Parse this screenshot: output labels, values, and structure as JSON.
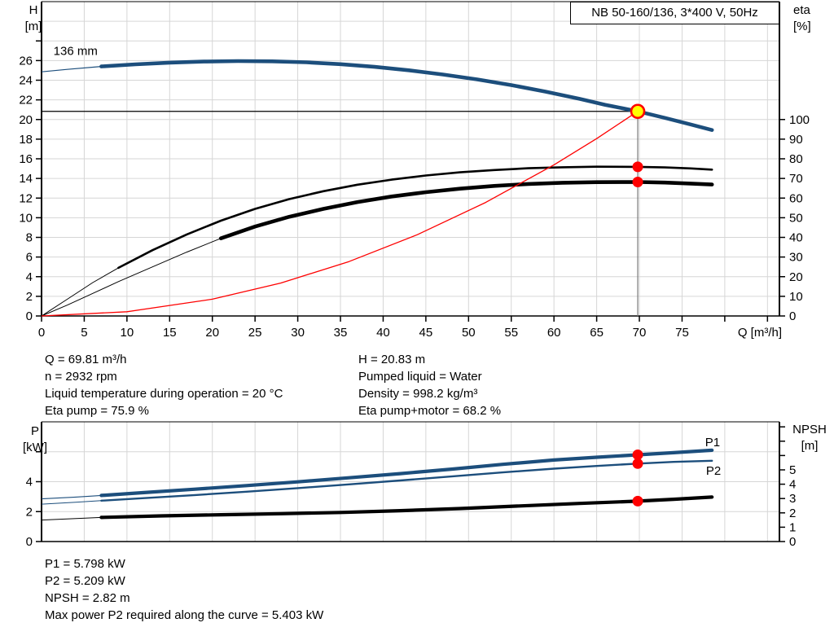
{
  "colors": {
    "blue": "#1c4e7c",
    "black": "#000000",
    "red": "#fe0000",
    "gray": "#7a7a7a",
    "grid": "#d6d6d6",
    "duty_fill": "#ffff00"
  },
  "chart_data": [
    {
      "id": "head-efficiency-chart",
      "type": "line",
      "title": "NB 50-160/136, 3*400 V, 50Hz",
      "x_axis": {
        "label": "Q [m³/h]",
        "range": [
          0,
          86.4
        ],
        "grid": [
          5,
          10,
          15,
          20,
          25,
          30,
          35,
          40,
          45,
          50,
          55,
          60,
          65,
          70,
          75,
          80,
          85
        ],
        "ticks": [
          {
            "v": 0,
            "label": "0"
          },
          {
            "v": 5,
            "label": "5"
          },
          {
            "v": 10,
            "label": "10"
          },
          {
            "v": 15,
            "label": "15"
          },
          {
            "v": 20,
            "label": "20"
          },
          {
            "v": 25,
            "label": "25"
          },
          {
            "v": 30,
            "label": "30"
          },
          {
            "v": 35,
            "label": "35"
          },
          {
            "v": 40,
            "label": "40"
          },
          {
            "v": 45,
            "label": "45"
          },
          {
            "v": 50,
            "label": "50"
          },
          {
            "v": 55,
            "label": "55"
          },
          {
            "v": 60,
            "label": "60"
          },
          {
            "v": 65,
            "label": "65"
          },
          {
            "v": 70,
            "label": "70"
          },
          {
            "v": 75,
            "label": "75"
          },
          {
            "v": 80
          },
          {
            "v": 85
          }
        ]
      },
      "left_axis": {
        "name": [
          "H",
          "[m]"
        ],
        "range": [
          0,
          32
        ],
        "grid": [
          2,
          4,
          6,
          8,
          10,
          12,
          14,
          16,
          18,
          20,
          22,
          24,
          26,
          28,
          30
        ],
        "ticks": [
          {
            "v": 0,
            "label": "0"
          },
          {
            "v": 2,
            "label": "2"
          },
          {
            "v": 4,
            "label": "4"
          },
          {
            "v": 6,
            "label": "6"
          },
          {
            "v": 8,
            "label": "8"
          },
          {
            "v": 10,
            "label": "10"
          },
          {
            "v": 12,
            "label": "12"
          },
          {
            "v": 14,
            "label": "14"
          },
          {
            "v": 16,
            "label": "16"
          },
          {
            "v": 18,
            "label": "18"
          },
          {
            "v": 20,
            "label": "20"
          },
          {
            "v": 22,
            "label": "22"
          },
          {
            "v": 24,
            "label": "24"
          },
          {
            "v": 26,
            "label": "26"
          },
          {
            "v": 28
          }
        ]
      },
      "right_axis": {
        "name": [
          "eta",
          "[%]"
        ],
        "range": [
          0,
          160
        ],
        "ticks": [
          {
            "v": 0,
            "label": "0"
          },
          {
            "v": 10,
            "label": "10"
          },
          {
            "v": 20,
            "label": "20"
          },
          {
            "v": 30,
            "label": "30"
          },
          {
            "v": 40,
            "label": "40"
          },
          {
            "v": 50,
            "label": "50"
          },
          {
            "v": 60,
            "label": "60"
          },
          {
            "v": 70,
            "label": "70"
          },
          {
            "v": 80,
            "label": "80"
          },
          {
            "v": 90,
            "label": "90"
          },
          {
            "v": 100,
            "label": "100"
          }
        ]
      },
      "ref_lines": [
        {
          "dir": "h",
          "y": 20.83,
          "x1": 0,
          "x2": 69.81,
          "color": "black",
          "w": 1.3
        },
        {
          "dir": "v",
          "x": 69.81,
          "y1": 0,
          "y2": 20.83,
          "color": "gray",
          "w": 1.2
        }
      ],
      "series": [
        {
          "name": "eta-pump-curve",
          "axis": "right",
          "color": "black",
          "width": 2.6,
          "thin_width": 1,
          "thick_from": 7,
          "points": [
            [
              0,
              0
            ],
            [
              3,
              8.5
            ],
            [
              6,
              17
            ],
            [
              9,
              24.5
            ],
            [
              13,
              33.5
            ],
            [
              17,
              41.5
            ],
            [
              21,
              48.5
            ],
            [
              25,
              54.5
            ],
            [
              29,
              59.5
            ],
            [
              33,
              63.5
            ],
            [
              37,
              66.8
            ],
            [
              41,
              69.4
            ],
            [
              45,
              71.5
            ],
            [
              49,
              73.1
            ],
            [
              53,
              74.3
            ],
            [
              57,
              75.2
            ],
            [
              61,
              75.7
            ],
            [
              65,
              76.0
            ],
            [
              69.81,
              75.9
            ],
            [
              73,
              75.6
            ],
            [
              76,
              75.1
            ],
            [
              78.5,
              74.5
            ]
          ]
        },
        {
          "name": "eta-pump-motor-curve",
          "axis": "right",
          "color": "black",
          "width": 4.6,
          "thin_width": 1,
          "thick_from": 20,
          "points": [
            [
              0,
              0
            ],
            [
              3,
              5.5
            ],
            [
              6,
              11.5
            ],
            [
              9,
              17.5
            ],
            [
              13,
              25
            ],
            [
              17,
              32.5
            ],
            [
              21,
              39.5
            ],
            [
              25,
              45.5
            ],
            [
              29,
              50.5
            ],
            [
              33,
              54.5
            ],
            [
              37,
              58
            ],
            [
              41,
              60.8
            ],
            [
              45,
              63
            ],
            [
              49,
              64.8
            ],
            [
              53,
              66.2
            ],
            [
              57,
              67.2
            ],
            [
              61,
              67.8
            ],
            [
              65,
              68.1
            ],
            [
              69.81,
              68.2
            ],
            [
              73,
              67.9
            ],
            [
              76,
              67.4
            ],
            [
              78.5,
              66.9
            ]
          ]
        },
        {
          "name": "system-curve",
          "axis": "left",
          "color": "red",
          "width": 1.3,
          "points": [
            [
              0,
              0
            ],
            [
              10,
              0.43
            ],
            [
              20,
              1.71
            ],
            [
              28,
              3.35
            ],
            [
              36,
              5.54
            ],
            [
              44,
              8.27
            ],
            [
              52,
              11.56
            ],
            [
              60,
              15.39
            ],
            [
              65,
              18.06
            ],
            [
              69.81,
              20.83
            ]
          ]
        },
        {
          "name": "pump-curve-136mm",
          "axis": "left",
          "color": "blue",
          "width": 4.6,
          "thin_width": 1.2,
          "thick_from": 7,
          "points": [
            [
              0,
              24.85
            ],
            [
              3,
              25.1
            ],
            [
              7,
              25.4
            ],
            [
              11,
              25.62
            ],
            [
              15,
              25.79
            ],
            [
              19,
              25.9
            ],
            [
              23,
              25.95
            ],
            [
              27,
              25.92
            ],
            [
              31,
              25.82
            ],
            [
              35,
              25.63
            ],
            [
              39,
              25.36
            ],
            [
              43,
              25.01
            ],
            [
              47,
              24.58
            ],
            [
              51,
              24.08
            ],
            [
              55,
              23.5
            ],
            [
              59,
              22.84
            ],
            [
              63,
              22.1
            ],
            [
              66,
              21.5
            ],
            [
              69.81,
              20.83
            ],
            [
              73,
              20.16
            ],
            [
              76,
              19.5
            ],
            [
              78.5,
              18.93
            ]
          ]
        }
      ],
      "markers": [
        {
          "name": "duty-point-marker",
          "kind": "duty",
          "axis": "left",
          "x": 69.81,
          "y": 20.83
        },
        {
          "name": "eta-pump-duty-dot",
          "kind": "dot",
          "axis": "right",
          "x": 69.81,
          "y": 75.9
        },
        {
          "name": "eta-pump-motor-duty-dot",
          "kind": "dot",
          "axis": "right",
          "x": 69.81,
          "y": 68.2
        }
      ],
      "annotations": [
        {
          "name": "impeller-size-label",
          "text": "136 mm",
          "axis": "left",
          "x": 1.4,
          "y": 26.55,
          "color": "black",
          "anchor": "start"
        }
      ]
    },
    {
      "id": "power-npsh-chart",
      "type": "line",
      "x_axis": {
        "range": [
          0,
          86.4
        ],
        "grid": [
          5,
          10,
          15,
          20,
          25,
          30,
          35,
          40,
          45,
          50,
          55,
          60,
          65,
          70,
          75,
          80,
          85
        ],
        "ticks": []
      },
      "left_axis": {
        "name": [
          "P",
          "[kW]"
        ],
        "range": [
          0,
          8
        ],
        "grid": [
          2,
          4,
          6
        ],
        "ticks": [
          {
            "v": 0,
            "label": "0"
          },
          {
            "v": 2,
            "label": "2"
          },
          {
            "v": 4,
            "label": "4"
          },
          {
            "v": 6
          }
        ]
      },
      "right_axis": {
        "name": [
          "NPSH",
          "[m]"
        ],
        "range": [
          0,
          8.35
        ],
        "ticks": [
          {
            "v": 0,
            "label": "0"
          },
          {
            "v": 1,
            "label": "1"
          },
          {
            "v": 2,
            "label": "2"
          },
          {
            "v": 3,
            "label": "3"
          },
          {
            "v": 4,
            "label": "4"
          },
          {
            "v": 5,
            "label": "5"
          },
          {
            "v": 6
          },
          {
            "v": 7
          },
          {
            "v": 8
          }
        ]
      },
      "series": [
        {
          "name": "p1-curve",
          "axis": "left",
          "color": "blue",
          "width": 4.2,
          "thin_width": 1.1,
          "thick_from": 7,
          "points": [
            [
              0,
              2.85
            ],
            [
              4,
              2.97
            ],
            [
              7,
              3.08
            ],
            [
              12,
              3.27
            ],
            [
              18,
              3.5
            ],
            [
              24,
              3.74
            ],
            [
              30,
              3.99
            ],
            [
              36,
              4.26
            ],
            [
              42,
              4.54
            ],
            [
              48,
              4.84
            ],
            [
              54,
              5.16
            ],
            [
              60,
              5.45
            ],
            [
              65,
              5.63
            ],
            [
              69.81,
              5.798
            ],
            [
              74,
              5.94
            ],
            [
              78.5,
              6.1
            ]
          ]
        },
        {
          "name": "p2-curve",
          "axis": "left",
          "color": "blue",
          "width": 2.4,
          "thin_width": 1,
          "thick_from": 7,
          "points": [
            [
              0,
              2.5
            ],
            [
              4,
              2.63
            ],
            [
              7,
              2.73
            ],
            [
              12,
              2.9
            ],
            [
              18,
              3.11
            ],
            [
              24,
              3.33
            ],
            [
              30,
              3.57
            ],
            [
              36,
              3.82
            ],
            [
              42,
              4.08
            ],
            [
              48,
              4.35
            ],
            [
              54,
              4.62
            ],
            [
              60,
              4.87
            ],
            [
              65,
              5.05
            ],
            [
              69.81,
              5.209
            ],
            [
              74,
              5.32
            ],
            [
              78.5,
              5.4
            ]
          ]
        },
        {
          "name": "npsh-curve",
          "axis": "right",
          "color": "black",
          "width": 4.2,
          "thin_width": 1,
          "thick_from": 7,
          "points": [
            [
              0,
              1.5
            ],
            [
              7,
              1.68
            ],
            [
              14,
              1.79
            ],
            [
              21,
              1.87
            ],
            [
              28,
              1.94
            ],
            [
              35,
              2.03
            ],
            [
              42,
              2.15
            ],
            [
              49,
              2.3
            ],
            [
              56,
              2.48
            ],
            [
              63,
              2.66
            ],
            [
              69.81,
              2.82
            ],
            [
              74,
              2.95
            ],
            [
              78.5,
              3.1
            ]
          ]
        }
      ],
      "markers": [
        {
          "name": "p1-duty-dot",
          "kind": "dot",
          "axis": "left",
          "x": 69.81,
          "y": 5.798
        },
        {
          "name": "p2-duty-dot",
          "kind": "dot",
          "axis": "left",
          "x": 69.81,
          "y": 5.209
        },
        {
          "name": "npsh-duty-dot",
          "kind": "dot",
          "axis": "right",
          "x": 69.81,
          "y": 2.82
        }
      ],
      "annotations": [
        {
          "name": "p1-series-label",
          "text": "P1",
          "axis": "left",
          "x": 77.7,
          "y": 6.37,
          "color": "blue",
          "anchor": "start"
        },
        {
          "name": "p2-series-label",
          "text": "P2",
          "axis": "left",
          "x": 77.8,
          "y": 4.46,
          "color": "blue",
          "anchor": "start"
        }
      ]
    }
  ],
  "info": {
    "middle_left": [
      "Q = 69.81 m³/h",
      "n = 2932 rpm",
      "Liquid temperature during operation = 20 °C",
      "Eta pump = 75.9 %"
    ],
    "middle_right": [
      "H = 20.83 m",
      "Pumped liquid = Water",
      "Density = 998.2 kg/m³",
      "Eta pump+motor = 68.2 %"
    ],
    "bottom": [
      "P1 = 5.798 kW",
      "P2 = 5.209 kW",
      "NPSH = 2.82 m",
      "Max power P2 required along the curve = 5.403 kW"
    ]
  }
}
